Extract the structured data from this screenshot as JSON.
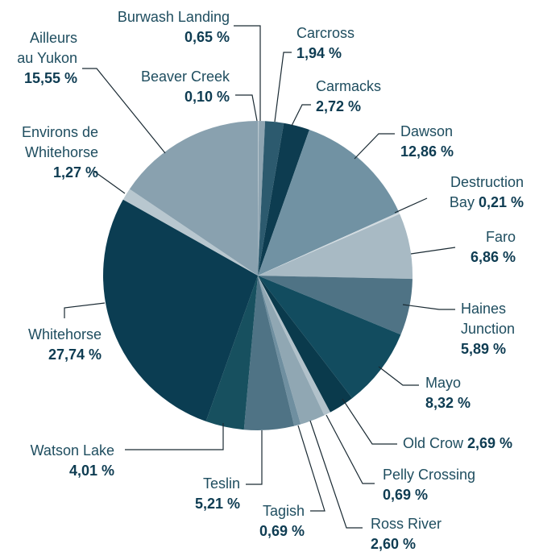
{
  "chart_data": {
    "type": "pie",
    "categories": [
      "Beaver Creek",
      "Burwash Landing",
      "Carcross",
      "Carmacks",
      "Dawson",
      "Destruction Bay",
      "Faro",
      "Haines Junction",
      "Mayo",
      "Old Crow",
      "Pelly Crossing",
      "Ross River",
      "Tagish",
      "Teslin",
      "Watson Lake",
      "Whitehorse",
      "Environs de Whitehorse",
      "Ailleurs au Yukon"
    ],
    "values": [
      0.1,
      0.65,
      1.94,
      2.72,
      12.86,
      0.21,
      6.86,
      5.89,
      8.32,
      2.69,
      0.69,
      2.6,
      0.69,
      5.21,
      4.01,
      27.74,
      1.27,
      15.55
    ],
    "value_labels": [
      "0,10 %",
      "0,65 %",
      "1,94 %",
      "2,72 %",
      "12,86 %",
      "0,21 %",
      "6,86 %",
      "5,89 %",
      "8,32 %",
      "2,69 %",
      "0,69 %",
      "2,60 %",
      "0,69 %",
      "5,21 %",
      "4,01 %",
      "27,74 %",
      "1,27 %",
      "15,55 %"
    ],
    "colors": [
      "#b9c7cf",
      "#8ea4b1",
      "#2c5a6e",
      "#0d3c50",
      "#7192a3",
      "#d3dce1",
      "#a8bac4",
      "#4f7385",
      "#124c5f",
      "#0a3a4c",
      "#b2c2cb",
      "#90a7b3",
      "#6f8fa0",
      "#4f7385",
      "#17505f",
      "#0b3d52",
      "#b8c7cf",
      "#89a1af"
    ]
  }
}
